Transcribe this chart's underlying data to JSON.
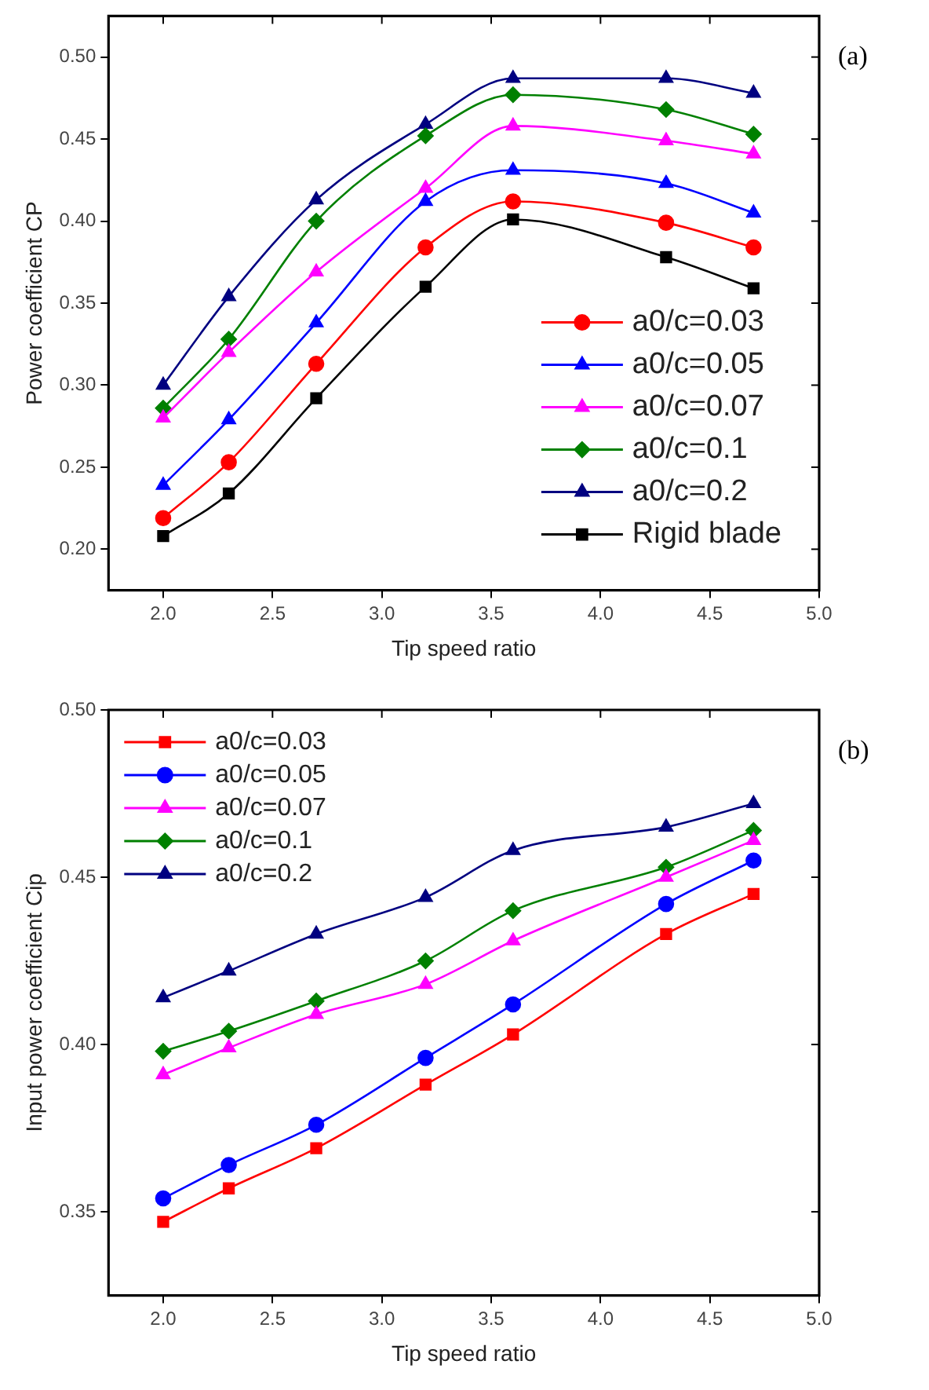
{
  "chart_data": [
    {
      "type": "line",
      "xlabel": "Tip speed ratio",
      "ylabel": "Power coefficient CP",
      "annotations": [
        "(a)"
      ],
      "legend": "bottom right",
      "line_style": "solid",
      "x": [
        2.0,
        2.3,
        2.7,
        3.2,
        3.6,
        4.3,
        4.7
      ],
      "xlim": [
        1.75,
        5.0
      ],
      "xticks": [
        {
          "value": 2,
          "label": "2.0"
        },
        2.5,
        {
          "value": 3,
          "label": "3.0"
        },
        3.5,
        {
          "value": 4,
          "label": "4.0"
        },
        4.5,
        {
          "value": 5,
          "label": "5.0"
        }
      ],
      "ylim": [
        0.175,
        0.525
      ],
      "yticks": [
        {
          "value": 0.2,
          "label": "0.20"
        },
        0.25,
        {
          "value": 0.3,
          "label": "0.30"
        },
        0.35,
        {
          "value": 0.4,
          "label": "0.40"
        },
        0.45,
        {
          "value": 0.5,
          "label": "0.50"
        }
      ],
      "series": [
        {
          "name": "a0/c=0.03",
          "color": "#ff0000",
          "marker": "circle",
          "values": [
            0.219,
            0.253,
            0.313,
            0.384,
            0.412,
            0.399,
            0.384
          ]
        },
        {
          "name": "a0/c=0.05",
          "color": "#0000ff",
          "marker": "triangle",
          "values": [
            0.239,
            0.279,
            0.338,
            0.412,
            0.431,
            0.423,
            0.405
          ]
        },
        {
          "name": "a0/c=0.07",
          "color": "#ff00ff",
          "marker": "triangle",
          "values": [
            0.28,
            0.32,
            0.369,
            0.42,
            0.458,
            0.449,
            0.441
          ]
        },
        {
          "name": "a0/c=0.1",
          "color": "#008000",
          "marker": "diamond",
          "values": [
            0.286,
            0.328,
            0.4,
            0.452,
            0.477,
            0.468,
            0.453
          ]
        },
        {
          "name": "a0/c=0.2",
          "color": "#000080",
          "marker": "triangle",
          "values": [
            0.3,
            0.354,
            0.413,
            0.459,
            0.487,
            0.487,
            0.478
          ]
        },
        {
          "name": "Rigid blade",
          "color": "#000000",
          "marker": "square",
          "values": [
            0.208,
            0.234,
            0.292,
            0.36,
            0.401,
            0.378,
            0.359
          ]
        }
      ]
    },
    {
      "type": "line",
      "xlabel": "Tip speed ratio",
      "ylabel": "Input power coefficient Cip",
      "annotations": [
        "(b)"
      ],
      "legend": "top left",
      "line_style": "solid",
      "x": [
        2.0,
        2.3,
        2.7,
        3.2,
        3.6,
        4.3,
        4.7
      ],
      "xlim": [
        1.75,
        5.0
      ],
      "xticks": [
        {
          "value": 2,
          "label": "2.0"
        },
        2.5,
        {
          "value": 3,
          "label": "3.0"
        },
        3.5,
        {
          "value": 4,
          "label": "4.0"
        },
        4.5,
        {
          "value": 5,
          "label": "5.0"
        }
      ],
      "ylim": [
        0.325,
        0.5
      ],
      "yticks": [
        0.35,
        {
          "value": 0.4,
          "label": "0.40"
        },
        0.45,
        {
          "value": 0.5,
          "label": "0.50"
        }
      ],
      "series": [
        {
          "name": "a0/c=0.03",
          "color": "#ff0000",
          "marker": "square",
          "values": [
            0.347,
            0.357,
            0.369,
            0.388,
            0.403,
            0.433,
            0.445
          ]
        },
        {
          "name": "a0/c=0.05",
          "color": "#0000ff",
          "marker": "circle",
          "values": [
            0.354,
            0.364,
            0.376,
            0.396,
            0.412,
            0.442,
            0.455
          ]
        },
        {
          "name": "a0/c=0.07",
          "color": "#ff00ff",
          "marker": "triangle",
          "values": [
            0.391,
            0.399,
            0.409,
            0.418,
            0.431,
            0.45,
            0.461
          ]
        },
        {
          "name": "a0/c=0.1",
          "color": "#008000",
          "marker": "diamond",
          "values": [
            0.398,
            0.404,
            0.413,
            0.425,
            0.44,
            0.453,
            0.464
          ]
        },
        {
          "name": "a0/c=0.2",
          "color": "#000080",
          "marker": "triangle",
          "values": [
            0.414,
            0.422,
            0.433,
            0.444,
            0.458,
            0.465,
            0.472
          ]
        }
      ]
    }
  ]
}
